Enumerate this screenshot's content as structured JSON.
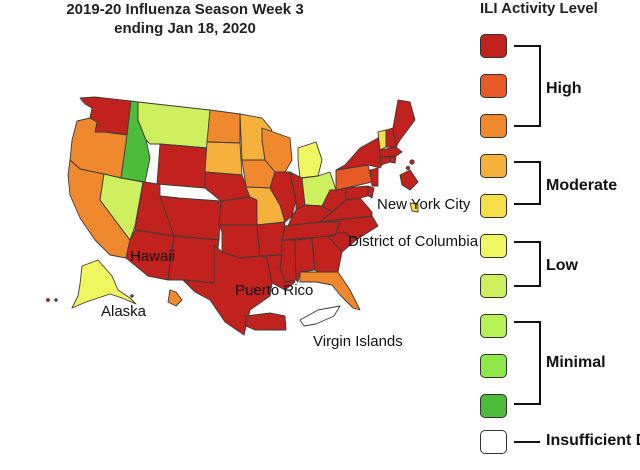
{
  "title": {
    "line1": "2019-20 Influenza Season Week 3",
    "line2": "ending Jan 18, 2020"
  },
  "legend": {
    "title": "ILI Activity Level",
    "groups": [
      {
        "label": "High",
        "levels": [
          10,
          9,
          8
        ]
      },
      {
        "label": "Moderate",
        "levels": [
          7,
          6
        ]
      },
      {
        "label": "Low",
        "levels": [
          5,
          4
        ]
      },
      {
        "label": "Minimal",
        "levels": [
          3,
          2,
          1
        ]
      },
      {
        "label": "Insufficient Data",
        "levels": [
          0
        ]
      }
    ],
    "colors": {
      "10": "#c1221d",
      "9": "#e85a25",
      "8": "#f0882e",
      "7": "#f6b03c",
      "6": "#f7df4a",
      "5": "#eef660",
      "4": "#cef05e",
      "3": "#b6f156",
      "2": "#8ee84a",
      "1": "#4cbc3a",
      "0": "#ffffff"
    }
  },
  "map_labels": {
    "new_york_city": "New York City",
    "district_of_columbia": "District of Columbia",
    "hawaii": "Hawaii",
    "alaska": "Alaska",
    "puerto_rico": "Puerto Rico",
    "virgin_islands": "Virgin Islands"
  },
  "regions": {
    "WA": 10,
    "OR": 8,
    "CA": 8,
    "NV": 4,
    "ID": 1,
    "MT": 4,
    "WY": 10,
    "UT": 10,
    "AZ": 10,
    "CO": 10,
    "NM": 10,
    "ND": 8,
    "SD": 7,
    "NE": 10,
    "KS": 10,
    "OK": 10,
    "TX": 10,
    "MN": 7,
    "IA": 8,
    "MO": 7,
    "AR": 10,
    "LA": 10,
    "WI": 8,
    "IL": 10,
    "MI": 5,
    "IN": 10,
    "OH": 4,
    "KY": 10,
    "TN": 10,
    "MS": 10,
    "AL": 10,
    "GA": 10,
    "FL": 8,
    "SC": 10,
    "NC": 10,
    "VA": 10,
    "WV": 10,
    "PA": 9,
    "NY": 10,
    "VT": 6,
    "NH": 10,
    "ME": 10,
    "MA": 10,
    "RI": 10,
    "CT": 10,
    "NJ": 10,
    "DE": 10,
    "MD": 10,
    "AK": 5,
    "HI": 8,
    "PR": 10,
    "VI": 0,
    "NYC": 6,
    "DC": 10
  }
}
